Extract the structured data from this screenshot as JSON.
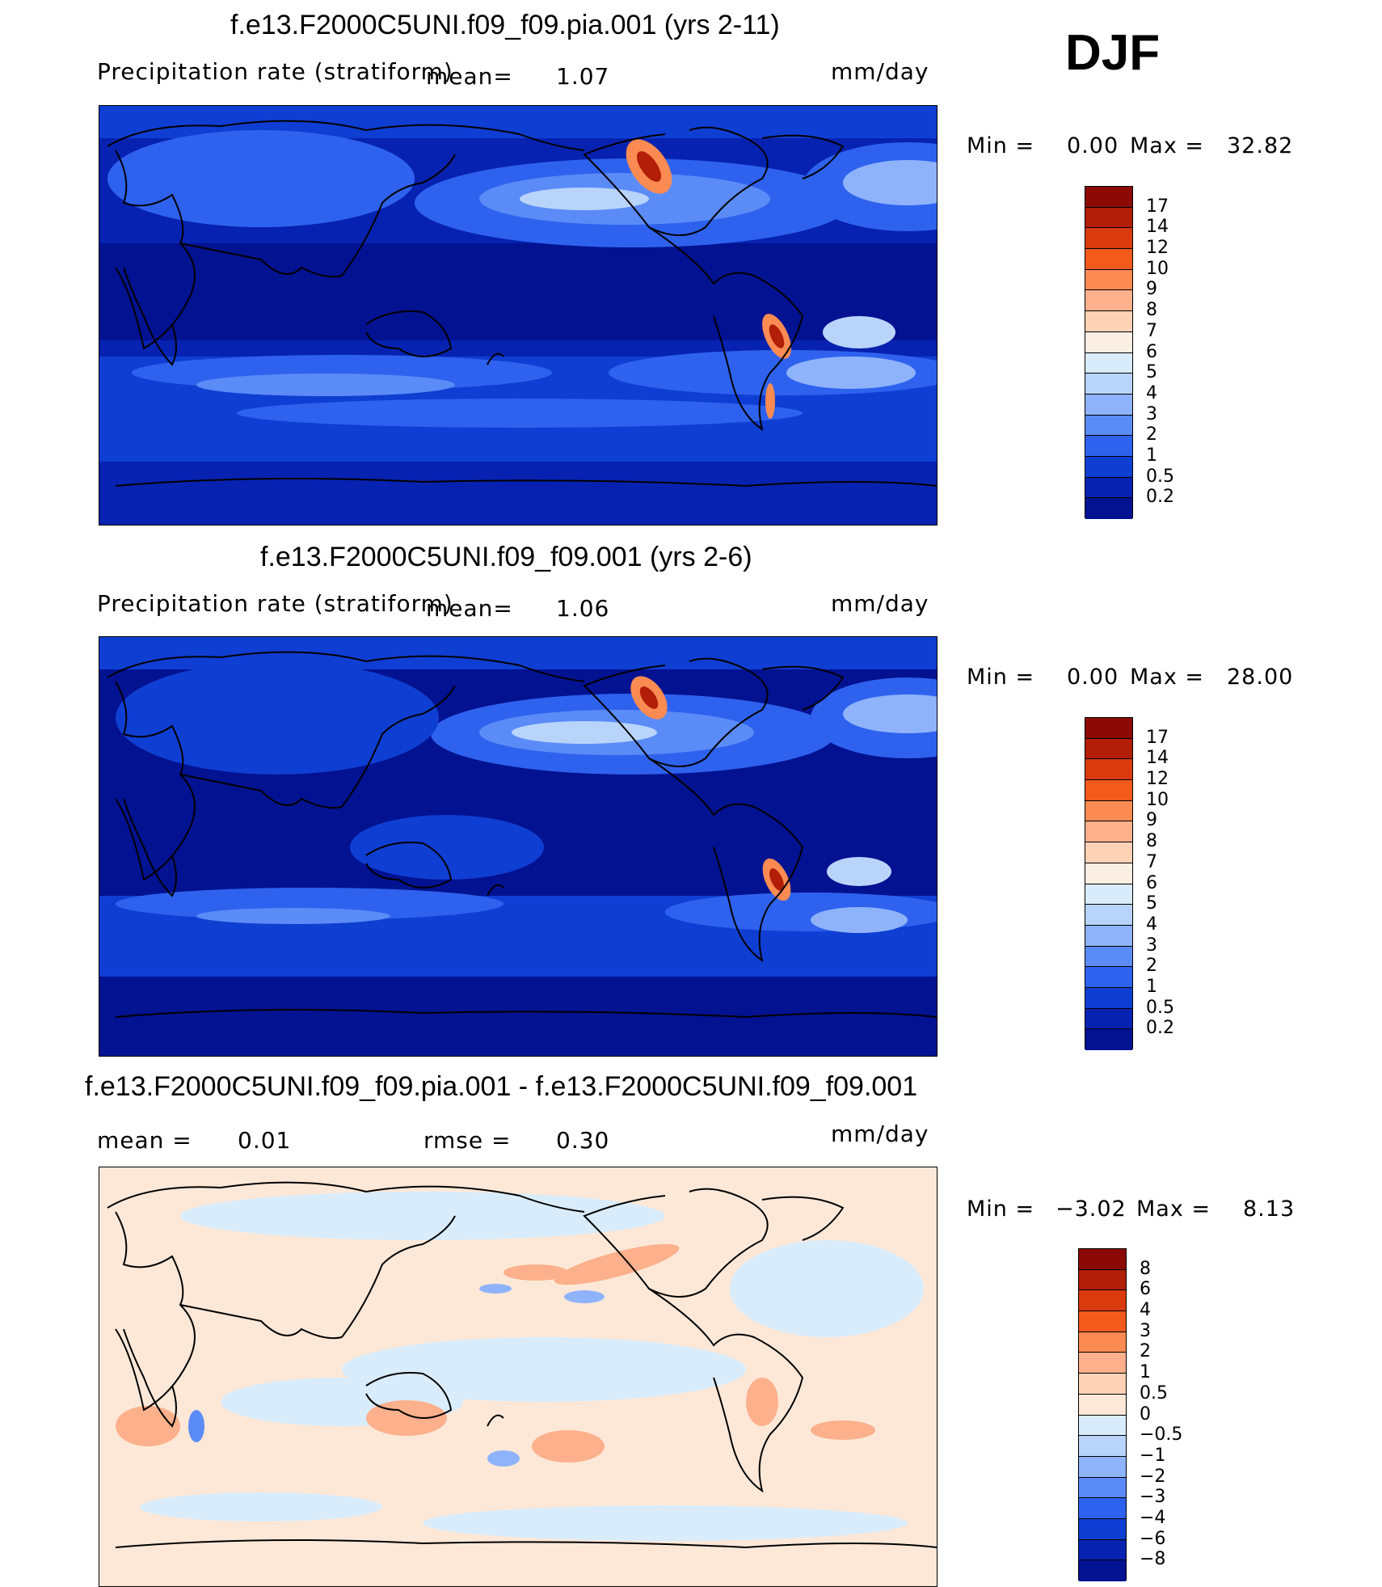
{
  "season": "DJF",
  "panels": [
    {
      "title": "f.e13.F2000C5UNI.f09_f09.pia.001 (yrs 2-11)",
      "variable": "Precipitation rate (stratiform)",
      "mean_label": "mean=",
      "mean_value": "1.07",
      "units": "mm/day",
      "min_label": "Min =",
      "min_value": "0.00",
      "max_label": "Max =",
      "max_value": "32.82",
      "colorbar": {
        "labels": [
          "17",
          "14",
          "12",
          "10",
          "9",
          "8",
          "7",
          "6",
          "5",
          "4",
          "3",
          "2",
          "1",
          "0.5",
          "0.2"
        ],
        "colors": [
          "#8b0a06",
          "#b21e08",
          "#d93b0e",
          "#f45a1c",
          "#fb8b52",
          "#fcb08b",
          "#fed2b6",
          "#fbeee2",
          "#d9ecfb",
          "#b9d4fb",
          "#8fb3fb",
          "#5b8bf7",
          "#2e62ee",
          "#0f3ed2",
          "#0722b0",
          "#021291"
        ]
      }
    },
    {
      "title": "f.e13.F2000C5UNI.f09_f09.001 (yrs 2-6)",
      "variable": "Precipitation rate (stratiform)",
      "mean_label": "mean=",
      "mean_value": "1.06",
      "units": "mm/day",
      "min_label": "Min =",
      "min_value": "0.00",
      "max_label": "Max =",
      "max_value": "28.00",
      "colorbar": {
        "labels": [
          "17",
          "14",
          "12",
          "10",
          "9",
          "8",
          "7",
          "6",
          "5",
          "4",
          "3",
          "2",
          "1",
          "0.5",
          "0.2"
        ],
        "colors": [
          "#8b0a06",
          "#b21e08",
          "#d93b0e",
          "#f45a1c",
          "#fb8b52",
          "#fcb08b",
          "#fed2b6",
          "#fbeee2",
          "#d9ecfb",
          "#b9d4fb",
          "#8fb3fb",
          "#5b8bf7",
          "#2e62ee",
          "#0f3ed2",
          "#0722b0",
          "#021291"
        ]
      }
    },
    {
      "title": "f.e13.F2000C5UNI.f09_f09.pia.001 - f.e13.F2000C5UNI.f09_f09.001",
      "mean_label": "mean =",
      "mean_value": "0.01",
      "rmse_label": "rmse =",
      "rmse_value": "0.30",
      "units": "mm/day",
      "min_label": "Min =",
      "min_value": "−3.02",
      "max_label": "Max =",
      "max_value": "8.13",
      "colorbar": {
        "labels": [
          "8",
          "6",
          "4",
          "3",
          "2",
          "1",
          "0.5",
          "0",
          "−0.5",
          "−1",
          "−2",
          "−3",
          "−4",
          "−6",
          "−8"
        ],
        "colors": [
          "#8b0a06",
          "#b21e08",
          "#d93b0e",
          "#f45a1c",
          "#fb8b52",
          "#fcb08b",
          "#fed2b6",
          "#fde8d8",
          "#d9ecfb",
          "#b9d4fb",
          "#8fb3fb",
          "#5b8bf7",
          "#2e62ee",
          "#0f3ed2",
          "#0722b0",
          "#021291"
        ]
      }
    }
  ]
}
